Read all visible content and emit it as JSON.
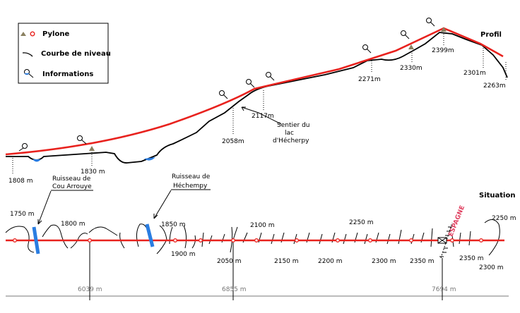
{
  "legend": {
    "pylone": "Pylone",
    "courbe": "Courbe de niveau",
    "informations": "Informations"
  },
  "profile_title": "Profil",
  "situation_title": "Situation",
  "profile_labels": {
    "p1808": "1808 m",
    "p1830": "1830 m",
    "p2058": "2058m",
    "p2117": "2117m",
    "p2271": "2271m",
    "p2330": "2330m",
    "p2399": "2399m",
    "p2301": "2301m",
    "p2263": "2263m"
  },
  "sentier": [
    "Sentier du",
    "lac",
    "d'Hécherpy"
  ],
  "ruisseau_cou": [
    "Ruisseau de",
    "Cou Arrouye"
  ],
  "ruisseau_hech": [
    "Ruisseau de",
    "Héchempy"
  ],
  "contours": {
    "c1750": "1750 m",
    "c1800": "1800 m",
    "c1850": "1850 m",
    "c1900": "1900 m",
    "c2050": "2050 m",
    "c2100": "2100 m",
    "c2150": "2150 m",
    "c2200": "2200 m",
    "c2250a": "2250 m",
    "c2300": "2300 m",
    "c2350": "2350 m",
    "c2350b": "2350 m",
    "c2250b": "2250 m",
    "c2300b": "2300 m"
  },
  "espagne": "ESPAGNE",
  "distances": {
    "d1": "6039 m",
    "d2": "6855 m",
    "d3": "7694 m"
  },
  "colors": {
    "red": "#e8221e",
    "blue": "#2a7de1",
    "grey": "#777777",
    "espagne": "#e04060"
  }
}
